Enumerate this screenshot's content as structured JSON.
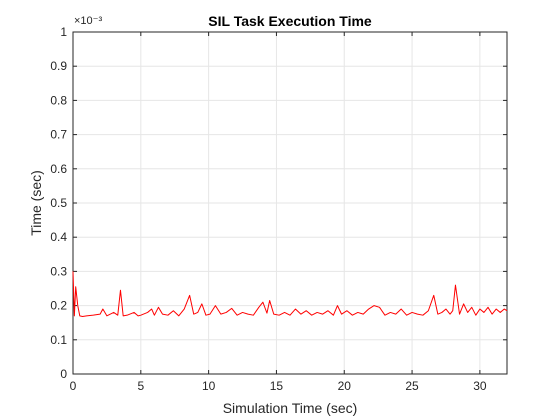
{
  "chart_data": {
    "type": "line",
    "title": "SIL Task Execution Time",
    "xlabel": "Simulation Time (sec)",
    "ylabel": "Time (sec)",
    "y_exponent_label": "×10⁻³",
    "xlim": [
      0,
      32
    ],
    "ylim": [
      0,
      1
    ],
    "x_ticks": [
      "0",
      "5",
      "10",
      "15",
      "20",
      "25",
      "30"
    ],
    "y_ticks": [
      "0",
      "0.1",
      "0.2",
      "0.3",
      "0.4",
      "0.5",
      "0.6",
      "0.7",
      "0.8",
      "0.9",
      "1"
    ],
    "grid": true,
    "line_color": "#ff0000",
    "series": [
      {
        "name": "",
        "x": [
          0,
          0.1,
          0.2,
          0.35,
          0.5,
          0.7,
          1.0,
          1.5,
          2.0,
          2.2,
          2.5,
          3.0,
          3.3,
          3.5,
          3.7,
          4.0,
          4.5,
          4.8,
          5.0,
          5.5,
          5.8,
          6.0,
          6.3,
          6.6,
          7.0,
          7.4,
          7.8,
          8.2,
          8.6,
          8.9,
          9.2,
          9.5,
          9.8,
          10.1,
          10.5,
          10.9,
          11.3,
          11.7,
          12.1,
          12.5,
          12.9,
          13.3,
          13.7,
          14.0,
          14.3,
          14.5,
          14.8,
          15.2,
          15.6,
          16.0,
          16.4,
          16.8,
          17.2,
          17.6,
          18.0,
          18.4,
          18.8,
          19.2,
          19.5,
          19.8,
          20.2,
          20.6,
          21.0,
          21.4,
          21.8,
          22.2,
          22.6,
          23.0,
          23.4,
          23.8,
          24.2,
          24.6,
          25.0,
          25.4,
          25.8,
          26.2,
          26.6,
          26.9,
          27.2,
          27.5,
          27.8,
          28.0,
          28.2,
          28.5,
          28.8,
          29.1,
          29.4,
          29.7,
          30.0,
          30.3,
          30.6,
          30.9,
          31.2,
          31.5,
          31.8,
          32.0
        ],
        "y": [
          0.3,
          0.17,
          0.255,
          0.2,
          0.17,
          0.168,
          0.17,
          0.172,
          0.175,
          0.19,
          0.17,
          0.18,
          0.172,
          0.245,
          0.17,
          0.172,
          0.18,
          0.17,
          0.172,
          0.18,
          0.19,
          0.172,
          0.195,
          0.175,
          0.172,
          0.185,
          0.17,
          0.19,
          0.23,
          0.175,
          0.18,
          0.205,
          0.172,
          0.175,
          0.2,
          0.175,
          0.18,
          0.192,
          0.172,
          0.18,
          0.175,
          0.172,
          0.195,
          0.21,
          0.178,
          0.215,
          0.175,
          0.172,
          0.18,
          0.172,
          0.19,
          0.175,
          0.185,
          0.172,
          0.18,
          0.175,
          0.185,
          0.172,
          0.2,
          0.175,
          0.185,
          0.172,
          0.18,
          0.175,
          0.19,
          0.2,
          0.195,
          0.172,
          0.18,
          0.175,
          0.19,
          0.172,
          0.18,
          0.175,
          0.172,
          0.185,
          0.23,
          0.175,
          0.18,
          0.19,
          0.175,
          0.185,
          0.26,
          0.175,
          0.205,
          0.18,
          0.195,
          0.172,
          0.19,
          0.18,
          0.195,
          0.175,
          0.19,
          0.18,
          0.19,
          0.185
        ]
      }
    ]
  }
}
